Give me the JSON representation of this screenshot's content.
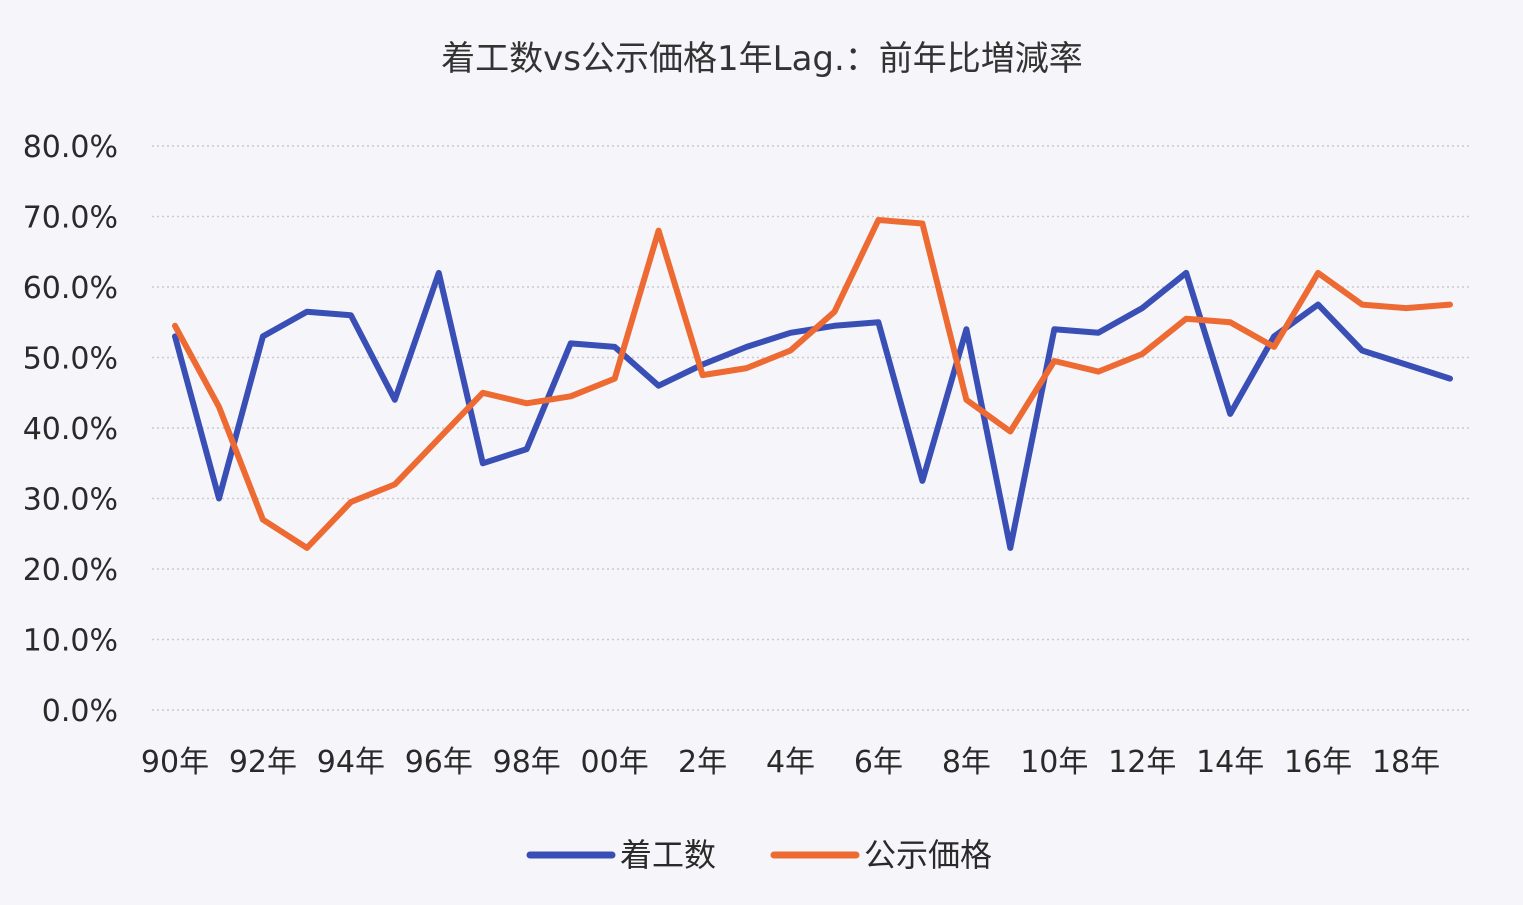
{
  "chart_data": {
    "type": "line",
    "title": "着工数vs公示価格1年Lag.：前年比増減率",
    "xlabel": "",
    "ylabel": "",
    "ylim": [
      0,
      80
    ],
    "y_ticks": [
      "0.0%",
      "10.0%",
      "20.0%",
      "30.0%",
      "40.0%",
      "50.0%",
      "60.0%",
      "70.0%",
      "80.0%"
    ],
    "grid": true,
    "legend_position": "bottom",
    "x": [
      1990,
      1991,
      1992,
      1993,
      1994,
      1995,
      1996,
      1997,
      1998,
      1999,
      2000,
      2001,
      2002,
      2003,
      2004,
      2005,
      2006,
      2007,
      2008,
      2009,
      2010,
      2011,
      2012,
      2013,
      2014,
      2015,
      2016,
      2017,
      2018,
      2019
    ],
    "x_tick_labels": [
      "90年",
      "92年",
      "94年",
      "96年",
      "98年",
      "00年",
      "2年",
      "4年",
      "6年",
      "8年",
      "10年",
      "12年",
      "14年",
      "16年",
      "18年"
    ],
    "series": [
      {
        "name": "着工数",
        "color": "#3a4fb5",
        "values": [
          53,
          30,
          53,
          56.5,
          56,
          44,
          62,
          35,
          37,
          52,
          51.5,
          46,
          49,
          51.5,
          53.5,
          54.5,
          55,
          32.5,
          54,
          23,
          54,
          53.5,
          57,
          62,
          42,
          53,
          57.5,
          51,
          49,
          47
        ]
      },
      {
        "name": "公示価格",
        "color": "#ee6a33",
        "values": [
          54.5,
          43,
          27,
          23,
          29.5,
          32,
          38.5,
          45,
          43.5,
          44.5,
          47,
          68,
          47.5,
          48.5,
          51,
          56.5,
          69.5,
          69,
          44,
          39.5,
          49.5,
          48,
          50.5,
          55.5,
          55,
          51.5,
          62,
          57.5,
          57,
          57.5
        ]
      }
    ]
  }
}
